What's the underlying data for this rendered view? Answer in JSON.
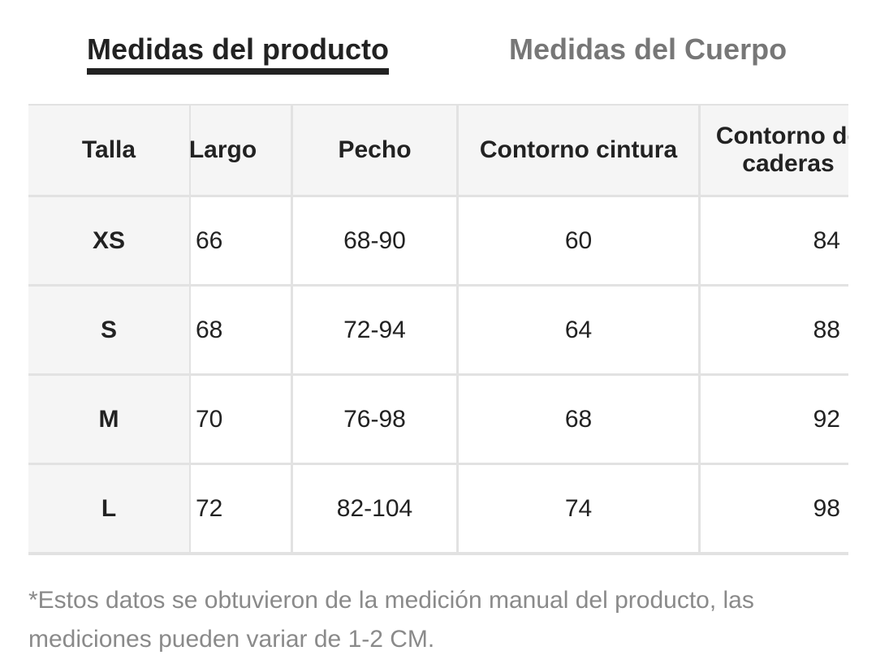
{
  "tabs": [
    {
      "label": "Medidas del producto",
      "active": true
    },
    {
      "label": "Medidas del Cuerpo",
      "active": false
    }
  ],
  "table": {
    "headers": [
      "Talla",
      "Largo",
      "Pecho",
      "Contorno cintura",
      "Contorno de caderas"
    ],
    "rows": [
      [
        "XS",
        "66",
        "68-90",
        "60",
        "84"
      ],
      [
        "S",
        "68",
        "72-94",
        "64",
        "88"
      ],
      [
        "M",
        "70",
        "76-98",
        "68",
        "92"
      ],
      [
        "L",
        "72",
        "82-104",
        "74",
        "98"
      ]
    ]
  },
  "footnote": "*Estos datos se obtuvieron de la medición manual del producto, las mediciones pueden variar de 1-2 CM."
}
